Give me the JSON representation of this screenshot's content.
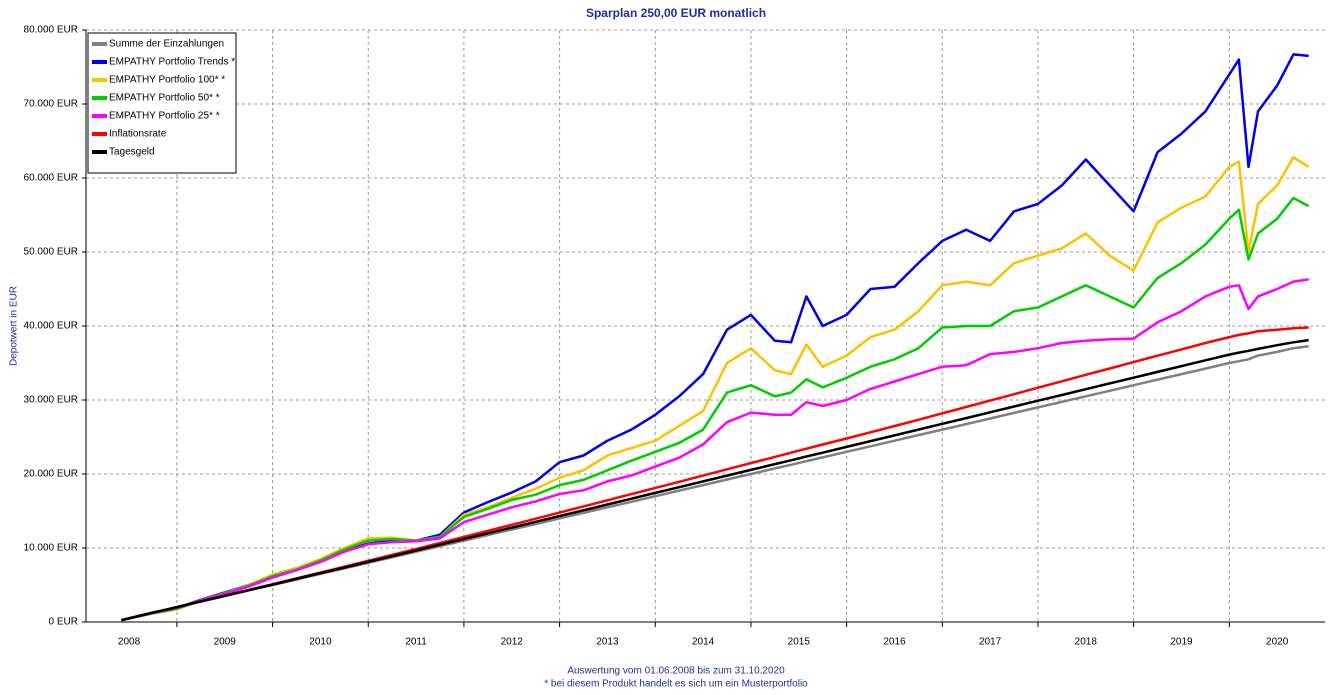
{
  "chart_data": {
    "type": "line",
    "title": "Sparplan 250,00 EUR monatlich",
    "y_label": "Depotwert in EUR",
    "footnotes": [
      "Auswertung vom 01.06.2008 bis zum 31.10.2020",
      "* bei diesem Produkt handelt es sich um ein Musterportfolio"
    ],
    "x": [
      2008.42,
      2008.75,
      2009.0,
      2009.25,
      2009.5,
      2009.75,
      2010.0,
      2010.25,
      2010.5,
      2010.75,
      2011.0,
      2011.25,
      2011.5,
      2011.75,
      2012.0,
      2012.25,
      2012.5,
      2012.75,
      2013.0,
      2013.25,
      2013.5,
      2013.75,
      2014.0,
      2014.25,
      2014.5,
      2014.75,
      2015.0,
      2015.25,
      2015.42,
      2015.58,
      2015.75,
      2016.0,
      2016.25,
      2016.5,
      2016.75,
      2017.0,
      2017.25,
      2017.5,
      2017.75,
      2018.0,
      2018.25,
      2018.5,
      2018.75,
      2019.0,
      2019.25,
      2019.5,
      2019.75,
      2020.0,
      2020.1,
      2020.2,
      2020.3,
      2020.5,
      2020.67,
      2020.83
    ],
    "xlim": [
      2008.05,
      2021
    ],
    "xticks": [
      {
        "value": 2008.5,
        "label": "2008"
      },
      {
        "value": 2009.5,
        "label": "2009"
      },
      {
        "value": 2010.5,
        "label": "2010"
      },
      {
        "value": 2011.5,
        "label": "2011"
      },
      {
        "value": 2012.5,
        "label": "2012"
      },
      {
        "value": 2013.5,
        "label": "2013"
      },
      {
        "value": 2014.5,
        "label": "2014"
      },
      {
        "value": 2015.5,
        "label": "2015"
      },
      {
        "value": 2016.5,
        "label": "2016"
      },
      {
        "value": 2017.5,
        "label": "2017"
      },
      {
        "value": 2018.5,
        "label": "2018"
      },
      {
        "value": 2019.5,
        "label": "2019"
      },
      {
        "value": 2020.5,
        "label": "2020"
      }
    ],
    "ylim": [
      0,
      80000
    ],
    "yticks": [
      {
        "value": 0,
        "label": "0 EUR"
      },
      {
        "value": 10000,
        "label": "10.000 EUR"
      },
      {
        "value": 20000,
        "label": "20.000 EUR"
      },
      {
        "value": 30000,
        "label": "30.000 EUR"
      },
      {
        "value": 40000,
        "label": "40.000 EUR"
      },
      {
        "value": 50000,
        "label": "50.000 EUR"
      },
      {
        "value": 60000,
        "label": "60.000 EUR"
      },
      {
        "value": 70000,
        "label": "70.000 EUR"
      },
      {
        "value": 80000,
        "label": "80.000 EUR"
      }
    ],
    "grid": true,
    "legend": "top-left",
    "series": [
      {
        "name": "Summe der Einzahlungen",
        "color": "#808080",
        "values": [
          250,
          1250,
          2000,
          2750,
          3500,
          4250,
          5000,
          5750,
          6500,
          7250,
          8000,
          8750,
          9500,
          10250,
          11000,
          11750,
          12500,
          13250,
          14000,
          14750,
          15500,
          16250,
          17000,
          17750,
          18500,
          19250,
          20000,
          20750,
          21250,
          21750,
          22250,
          23000,
          23750,
          24500,
          25250,
          26000,
          26750,
          27500,
          28250,
          29000,
          29750,
          30500,
          31250,
          32000,
          32750,
          33500,
          34250,
          35000,
          35250,
          35500,
          36000,
          36500,
          37000,
          37250
        ]
      },
      {
        "name": "EMPATHY Portfolio Trends *",
        "color": "#0000e8",
        "values": [
          250,
          1300,
          1900,
          3000,
          4000,
          5000,
          6300,
          7200,
          8300,
          9600,
          10600,
          11000,
          11000,
          11800,
          14800,
          16200,
          17500,
          19000,
          21600,
          22500,
          24500,
          26000,
          28000,
          30500,
          33500,
          39500,
          41500,
          38000,
          37800,
          44000,
          40000,
          41500,
          45000,
          45300,
          48500,
          51500,
          53000,
          51500,
          55500,
          56500,
          59000,
          62500,
          59000,
          55500,
          63500,
          66000,
          69000,
          74000,
          76000,
          61500,
          69000,
          72500,
          76700,
          76500
        ]
      },
      {
        "name": "EMPATHY Portfolio 100* *",
        "color": "#ffc000",
        "values": [
          250,
          1150,
          1700,
          2900,
          3900,
          5000,
          6400,
          7300,
          8500,
          10000,
          11300,
          11400,
          11000,
          11500,
          14500,
          15500,
          16800,
          18000,
          19500,
          20500,
          22500,
          23500,
          24500,
          26500,
          28500,
          35000,
          37000,
          34000,
          33500,
          37500,
          34500,
          36000,
          38500,
          39500,
          42000,
          45500,
          46000,
          45500,
          48500,
          49500,
          50500,
          52500,
          49500,
          47500,
          54000,
          56000,
          57500,
          61500,
          62200,
          50000,
          56500,
          59000,
          62800,
          61500
        ]
      },
      {
        "name": "EMPATHY Portfolio 50* *",
        "color": "#00cc00",
        "values": [
          250,
          1200,
          1800,
          2900,
          3900,
          4900,
          6200,
          7100,
          8300,
          9800,
          11000,
          11200,
          11000,
          11500,
          14200,
          15300,
          16500,
          17200,
          18500,
          19200,
          20500,
          21800,
          23000,
          24200,
          26000,
          31000,
          32000,
          30500,
          31000,
          32800,
          31700,
          33000,
          34500,
          35500,
          37000,
          39800,
          40000,
          40000,
          42000,
          42500,
          44000,
          45500,
          44000,
          42500,
          46500,
          48500,
          51000,
          54500,
          55700,
          49000,
          52500,
          54500,
          57300,
          56200
        ]
      },
      {
        "name": "EMPATHY Portfolio 25* *",
        "color": "#ff00ff",
        "values": [
          250,
          1250,
          1900,
          2900,
          3800,
          4800,
          6000,
          7000,
          8100,
          9500,
          10500,
          10800,
          10900,
          11300,
          13500,
          14500,
          15500,
          16300,
          17300,
          17800,
          19000,
          19800,
          21000,
          22200,
          24000,
          27000,
          28300,
          28000,
          28000,
          29700,
          29200,
          30000,
          31500,
          32500,
          33500,
          34500,
          34700,
          36200,
          36500,
          37000,
          37700,
          38000,
          38200,
          38300,
          40500,
          42000,
          44000,
          45300,
          45500,
          42300,
          44000,
          45000,
          46000,
          46300
        ]
      },
      {
        "name": "Inflationsrate",
        "color": "#ff0000",
        "values": [
          250,
          1260,
          2020,
          2790,
          3560,
          4330,
          5110,
          5890,
          6680,
          7470,
          8270,
          9070,
          9880,
          10690,
          11500,
          12320,
          13140,
          13960,
          14790,
          15620,
          16450,
          17280,
          18120,
          18950,
          19790,
          20630,
          21470,
          22310,
          22880,
          23420,
          23980,
          24800,
          25640,
          26480,
          27330,
          28200,
          29050,
          29920,
          30790,
          31660,
          32530,
          33400,
          34260,
          35120,
          35980,
          36840,
          37700,
          38500,
          38800,
          39000,
          39300,
          39500,
          39700,
          39800
        ]
      },
      {
        "name": "Tagesgeld",
        "color": "#000000",
        "values": [
          250,
          1260,
          2020,
          2780,
          3540,
          4300,
          5060,
          5820,
          6590,
          7350,
          8120,
          8890,
          9660,
          10440,
          11210,
          11990,
          12760,
          13540,
          14320,
          15100,
          15880,
          16660,
          17440,
          18220,
          19000,
          19780,
          20560,
          21340,
          21850,
          22360,
          22880,
          23660,
          24440,
          25220,
          26000,
          26780,
          27560,
          28340,
          29120,
          29900,
          30680,
          31460,
          32240,
          33020,
          33800,
          34580,
          35360,
          36140,
          36400,
          36650,
          36900,
          37400,
          37800,
          38100
        ]
      }
    ]
  }
}
